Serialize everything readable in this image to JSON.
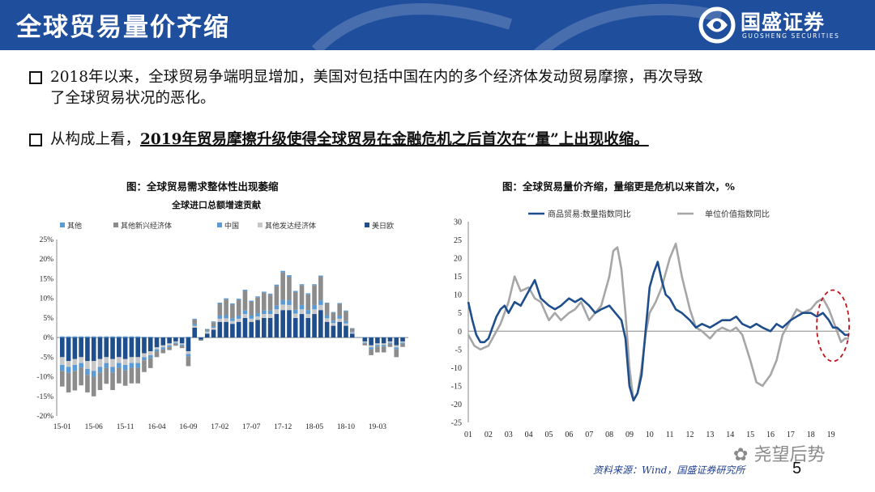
{
  "header": {
    "title": "全球贸易量价齐缩"
  },
  "logo": {
    "name": "国盛证券",
    "en": "GUOSHENG SECURITIES"
  },
  "bullets": [
    {
      "line1": "2018年以来，全球贸易争端明显增加，美国对包括中国在内的多个经济体发动贸易摩擦，再次导致",
      "line2": "了全球贸易状况的恶化。"
    },
    {
      "plain": "从构成上看，",
      "strong": "2019年贸易摩擦升级使得全球贸易在金融危机之后首次在“量”上出现收缩。"
    }
  ],
  "source": "资料来源：Wind，国盛证券研究所",
  "page_number": "5",
  "watermark": "尧望后势",
  "colors": {
    "header_bg": "#1f4e9c",
    "navy": "#1f4e8c",
    "gray": "#8c8c8c",
    "light_gray": "#c8c8c8",
    "blue": "#5b9bd5",
    "mid_gray": "#a6a6a6",
    "red_dash": "#c0141b"
  },
  "chart_data": [
    {
      "type": "bar",
      "stacked": true,
      "title": "图：全球贸易需求整体性出现萎缩",
      "subtitle": "全球进口总额增速贡献",
      "ylim": [
        -20,
        25
      ],
      "yticks": [
        "-20%",
        "-15%",
        "-10%",
        "-5%",
        "0%",
        "5%",
        "10%",
        "15%",
        "20%",
        "25%"
      ],
      "xticks": [
        "15-01",
        "15-06",
        "15-11",
        "16-04",
        "16-09",
        "17-02",
        "17-07",
        "17-12",
        "18-05",
        "18-10",
        "19-03"
      ],
      "legend": [
        "其他",
        "其他新兴经济体",
        "中国",
        "其他发达经济体",
        "美日欧"
      ],
      "series_colors": [
        "#5b9bd5",
        "#8c8c8c",
        "#5b9bd5",
        "#c8c8c8",
        "#1f4e8c"
      ],
      "categories": [
        "15-01",
        "15-02",
        "15-03",
        "15-04",
        "15-05",
        "15-06",
        "15-07",
        "15-08",
        "15-09",
        "15-10",
        "15-11",
        "15-12",
        "16-01",
        "16-02",
        "16-03",
        "16-04",
        "16-05",
        "16-06",
        "16-07",
        "16-08",
        "16-09",
        "16-10",
        "16-11",
        "16-12",
        "17-01",
        "17-02",
        "17-03",
        "17-04",
        "17-05",
        "17-06",
        "17-07",
        "17-08",
        "17-09",
        "17-10",
        "17-11",
        "17-12",
        "18-01",
        "18-02",
        "18-03",
        "18-04",
        "18-05",
        "18-06",
        "18-07",
        "18-08",
        "18-09",
        "18-10",
        "18-11",
        "18-12",
        "19-01",
        "19-02",
        "19-03",
        "19-04",
        "19-05",
        "19-06",
        "19-07"
      ],
      "series": [
        {
          "name": "美日欧",
          "values": [
            -5,
            -6,
            -5.5,
            -5,
            -6,
            -6,
            -5.5,
            -5,
            -5.5,
            -5,
            -5.5,
            -5,
            -5,
            -4,
            -3.5,
            -2.5,
            -2,
            -1.5,
            -1,
            -1.5,
            -3.5,
            2.5,
            -0.5,
            1,
            2,
            4,
            4,
            3.5,
            4,
            5,
            4,
            4.5,
            5,
            5,
            6,
            7,
            7,
            5,
            6,
            5,
            6,
            7,
            4,
            3,
            4,
            3,
            1,
            0,
            -1,
            -2,
            -1.5,
            -1.5,
            -1,
            -2,
            -1
          ]
        },
        {
          "name": "其他发达经济体",
          "values": [
            -2,
            -1.5,
            -1.5,
            -1.5,
            -2,
            -2.5,
            -2,
            -1.5,
            -2,
            -1.5,
            -1.5,
            -1.5,
            -1.5,
            -1,
            -1,
            -0.5,
            -0.5,
            -0.5,
            -0.3,
            -0.3,
            -0.7,
            0.5,
            0,
            0.5,
            0.5,
            0.8,
            0.9,
            0.7,
            0.8,
            1,
            0.8,
            0.9,
            1,
            1,
            1.2,
            1.4,
            1.3,
            1.1,
            1.2,
            1,
            1.2,
            1.3,
            0.9,
            0.7,
            0.8,
            0.6,
            0.3,
            0,
            -0.3,
            -0.5,
            -0.4,
            -0.4,
            -0.3,
            -0.5,
            -0.3
          ]
        },
        {
          "name": "中国",
          "values": [
            -1.5,
            -1.5,
            -1.5,
            -1.2,
            -1.5,
            -1.5,
            -1.4,
            -1.3,
            -1.4,
            -1.2,
            -1.3,
            -1.2,
            -1.2,
            -0.8,
            -0.8,
            -0.5,
            -0.5,
            -0.4,
            -0.3,
            -0.3,
            -0.6,
            0.4,
            0,
            0.2,
            0.4,
            0.8,
            0.8,
            0.7,
            0.8,
            0.9,
            0.8,
            0.8,
            0.9,
            0.9,
            1,
            1.2,
            1.2,
            1,
            1.1,
            1,
            1.1,
            1.2,
            0.8,
            0.6,
            0.8,
            0.6,
            0.2,
            0,
            -0.2,
            -0.5,
            -0.4,
            -0.4,
            -0.3,
            -0.5,
            -0.3
          ]
        },
        {
          "name": "其他新兴经济体",
          "values": [
            -4,
            -5,
            -5,
            -4.5,
            -4.5,
            -5,
            -4.5,
            -4,
            -4.5,
            -4,
            -4,
            -4,
            -4,
            -3,
            -2.5,
            -1.5,
            -1,
            -0.8,
            -0.5,
            -0.6,
            -2.5,
            1.2,
            -0.3,
            0.4,
            1,
            3,
            4,
            3.5,
            4,
            5,
            3.5,
            4,
            4.5,
            4,
            5,
            7,
            6,
            4.5,
            5,
            4,
            5,
            6,
            3,
            2,
            3,
            2.5,
            0.8,
            0,
            -0.5,
            -1.5,
            -1.5,
            -1.5,
            -0.8,
            -2,
            -0.8
          ]
        },
        {
          "name": "其他",
          "values": [
            0.3,
            0.3,
            0.3,
            0.3,
            0.3,
            0.3,
            0.3,
            0.3,
            0.3,
            0.3,
            0.3,
            0.3,
            0.3,
            0.2,
            0.2,
            0.1,
            0.1,
            0.1,
            0.1,
            0.1,
            0.2,
            0.2,
            0.1,
            0.1,
            0.2,
            0.3,
            0.3,
            0.3,
            0.3,
            0.3,
            0.3,
            0.3,
            0.3,
            0.3,
            0.3,
            0.4,
            0.4,
            0.3,
            0.3,
            0.3,
            0.3,
            0.3,
            0.2,
            0.2,
            0.2,
            0.2,
            0.1,
            0.1,
            0.1,
            0.1,
            0.1,
            0.1,
            0.1,
            0.1,
            0.1
          ]
        }
      ]
    },
    {
      "type": "line",
      "title": "图：全球贸易量价齐缩，量缩更是危机以来首次，%",
      "ylim": [
        -25,
        30
      ],
      "yticks": [
        "30",
        "25",
        "20",
        "15",
        "10",
        "5",
        "0",
        "-5",
        "-10",
        "-15",
        "-20",
        "-25"
      ],
      "xticks": [
        "01",
        "02",
        "03",
        "04",
        "05",
        "06",
        "07",
        "08",
        "09",
        "10",
        "11",
        "12",
        "13",
        "14",
        "15",
        "16",
        "17",
        "18",
        "19"
      ],
      "x_start": 2001,
      "x_end": 2019.9,
      "legend": [
        "商品贸易:数量指数同比",
        "单位价值指数同比"
      ],
      "series": [
        {
          "name": "商品贸易:数量指数同比",
          "color": "#1f4e8c",
          "x": [
            2001.0,
            2001.2,
            2001.4,
            2001.6,
            2001.8,
            2002.0,
            2002.2,
            2002.4,
            2002.6,
            2002.8,
            2003.0,
            2003.3,
            2003.6,
            2004.0,
            2004.3,
            2004.6,
            2005.0,
            2005.3,
            2005.6,
            2006.0,
            2006.3,
            2006.6,
            2007.0,
            2007.3,
            2007.6,
            2008.0,
            2008.3,
            2008.6,
            2008.8,
            2009.0,
            2009.2,
            2009.4,
            2009.6,
            2009.8,
            2010.0,
            2010.2,
            2010.4,
            2010.6,
            2010.8,
            2011.0,
            2011.3,
            2011.6,
            2012.0,
            2012.3,
            2012.6,
            2013.0,
            2013.3,
            2013.6,
            2014.0,
            2014.3,
            2014.6,
            2015.0,
            2015.3,
            2015.6,
            2016.0,
            2016.3,
            2016.6,
            2017.0,
            2017.3,
            2017.6,
            2018.0,
            2018.3,
            2018.6,
            2018.9,
            2019.1,
            2019.3,
            2019.5,
            2019.7,
            2019.9
          ],
          "y": [
            8,
            3,
            -1,
            -3,
            -3,
            -2,
            1,
            4,
            6,
            7,
            5,
            8,
            7,
            11,
            14,
            9,
            7,
            6,
            7,
            9,
            8,
            9,
            7,
            5,
            6,
            7,
            5,
            3,
            -2,
            -15,
            -19,
            -17,
            -12,
            0,
            12,
            16,
            19,
            14,
            10,
            9,
            6,
            5,
            3,
            1,
            2,
            1,
            2,
            3,
            3,
            4,
            2,
            1,
            2,
            1,
            0,
            2,
            1,
            3,
            4,
            5,
            5,
            4,
            5,
            3,
            1,
            1,
            0,
            -1,
            -1
          ]
        },
        {
          "name": "单位价值指数同比",
          "color": "#a6a6a6",
          "x": [
            2001.0,
            2001.3,
            2001.6,
            2002.0,
            2002.3,
            2002.6,
            2003.0,
            2003.3,
            2003.6,
            2004.0,
            2004.3,
            2004.6,
            2005.0,
            2005.3,
            2005.6,
            2006.0,
            2006.3,
            2006.6,
            2007.0,
            2007.3,
            2007.6,
            2008.0,
            2008.2,
            2008.4,
            2008.6,
            2008.8,
            2009.0,
            2009.2,
            2009.4,
            2009.6,
            2009.8,
            2010.0,
            2010.3,
            2010.6,
            2011.0,
            2011.3,
            2011.6,
            2012.0,
            2012.3,
            2012.6,
            2013.0,
            2013.3,
            2013.6,
            2014.0,
            2014.3,
            2014.6,
            2015.0,
            2015.3,
            2015.6,
            2016.0,
            2016.3,
            2016.6,
            2017.0,
            2017.3,
            2017.6,
            2018.0,
            2018.3,
            2018.6,
            2018.9,
            2019.1,
            2019.3,
            2019.5,
            2019.7,
            2019.9
          ],
          "y": [
            -1,
            -4,
            -5,
            -4,
            -1,
            2,
            8,
            15,
            11,
            12,
            9,
            8,
            3,
            5,
            3,
            5,
            6,
            8,
            3,
            5,
            7,
            15,
            22,
            23,
            17,
            5,
            -10,
            -19,
            -17,
            -10,
            -1,
            5,
            8,
            12,
            20,
            24,
            15,
            6,
            1,
            0,
            -2,
            0,
            1,
            0,
            1,
            -1,
            -8,
            -14,
            -15,
            -12,
            -8,
            -1,
            3,
            6,
            5,
            6,
            8,
            9,
            6,
            3,
            0,
            -3,
            -2,
            -2
          ]
        }
      ]
    }
  ]
}
